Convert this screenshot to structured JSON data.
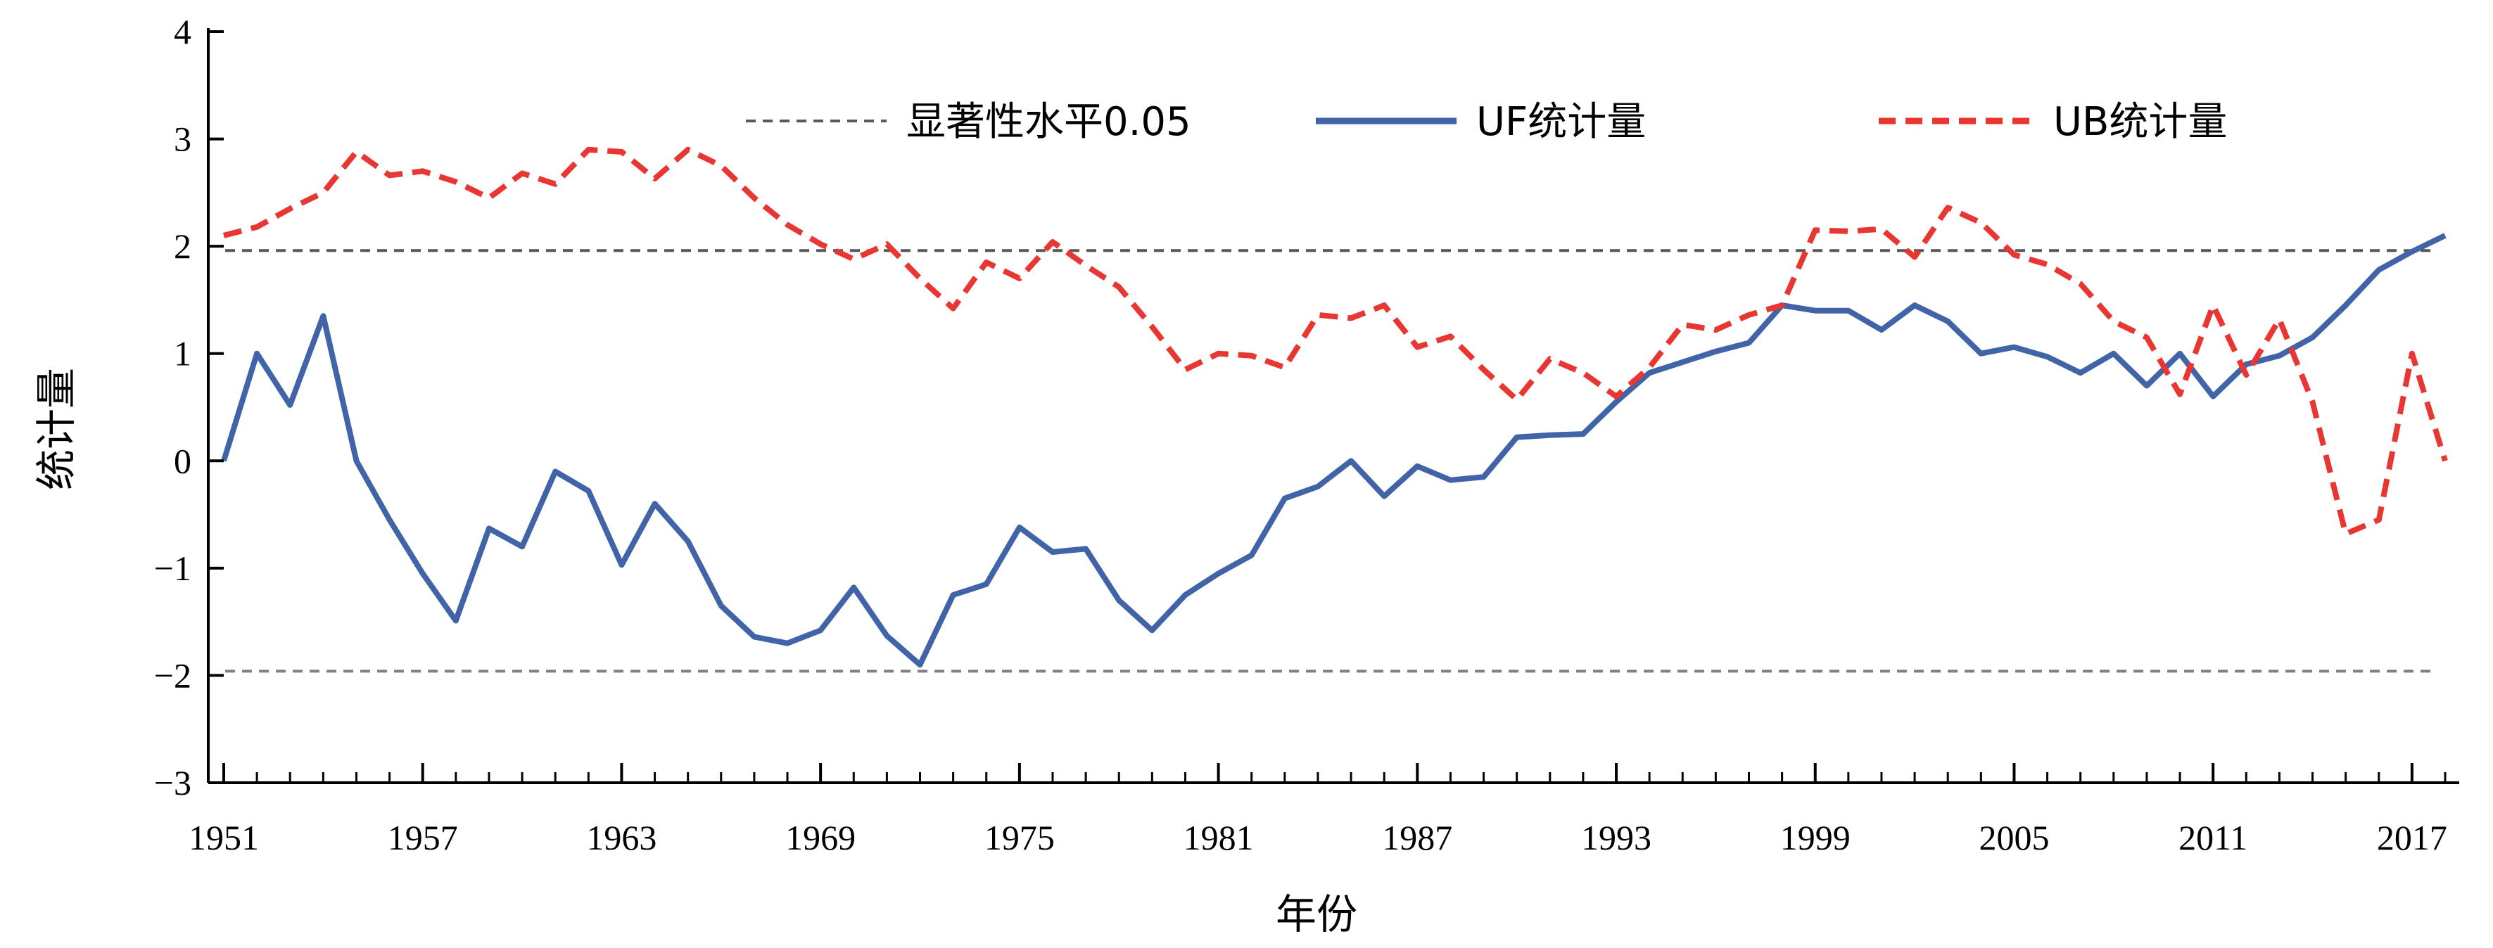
{
  "chart_data": {
    "type": "line",
    "xlabel": "年份",
    "ylabel": "统计量",
    "xlim": [
      1951,
      2018
    ],
    "ylim": [
      -3,
      4
    ],
    "x_ticks": [
      "1951",
      "1957",
      "1963",
      "1969",
      "1975",
      "1981",
      "1987",
      "1993",
      "1999",
      "2005",
      "2011",
      "2017"
    ],
    "y_ticks": [
      "−3",
      "−2",
      "−1",
      "0",
      "1",
      "2",
      "3",
      "4"
    ],
    "grid": false,
    "legend": "top-center",
    "x": [
      1951,
      1952,
      1953,
      1954,
      1955,
      1956,
      1957,
      1958,
      1959,
      1960,
      1961,
      1962,
      1963,
      1964,
      1965,
      1966,
      1967,
      1968,
      1969,
      1970,
      1971,
      1972,
      1973,
      1974,
      1975,
      1976,
      1977,
      1978,
      1979,
      1980,
      1981,
      1982,
      1983,
      1984,
      1985,
      1986,
      1987,
      1988,
      1989,
      1990,
      1991,
      1992,
      1993,
      1994,
      1995,
      1996,
      1997,
      1998,
      1999,
      2000,
      2001,
      2002,
      2003,
      2004,
      2005,
      2006,
      2007,
      2008,
      2009,
      2010,
      2011,
      2012,
      2013,
      2014,
      2015,
      2016,
      2017,
      2018
    ],
    "series": [
      {
        "name": "UF统计量",
        "color": "#4164a8",
        "style": "solid",
        "values": [
          0.0,
          1.0,
          0.52,
          1.35,
          0.0,
          -0.55,
          -1.05,
          -1.49,
          -0.63,
          -0.8,
          -0.1,
          -0.28,
          -0.97,
          -0.4,
          -0.75,
          -1.35,
          -1.64,
          -1.7,
          -1.58,
          -1.18,
          -1.63,
          -1.9,
          -1.25,
          -1.15,
          -0.62,
          -0.85,
          -0.82,
          -1.3,
          -1.58,
          -1.25,
          -1.05,
          -0.88,
          -0.35,
          -0.24,
          0.0,
          -0.33,
          -0.05,
          -0.18,
          -0.15,
          0.22,
          0.24,
          0.25,
          0.55,
          0.82,
          0.92,
          1.02,
          1.1,
          1.45,
          1.4,
          1.4,
          1.22,
          1.45,
          1.3,
          1.0,
          1.06,
          0.97,
          0.82,
          1.0,
          0.7,
          1.0,
          0.6,
          0.9,
          0.98,
          1.15,
          1.45,
          1.78,
          1.95,
          2.1
        ]
      },
      {
        "name": "UB统计量",
        "color": "#e83732",
        "style": "dashed",
        "values": [
          2.1,
          2.18,
          2.35,
          2.5,
          2.88,
          2.66,
          2.7,
          2.6,
          2.45,
          2.68,
          2.58,
          2.9,
          2.88,
          2.63,
          2.9,
          2.75,
          2.45,
          2.2,
          2.02,
          1.88,
          2.02,
          1.7,
          1.42,
          1.85,
          1.7,
          2.04,
          1.82,
          1.62,
          1.25,
          0.85,
          1.0,
          0.98,
          0.87,
          1.36,
          1.33,
          1.45,
          1.06,
          1.16,
          0.85,
          0.57,
          0.95,
          0.82,
          0.6,
          0.87,
          1.27,
          1.22,
          1.36,
          1.45,
          2.15,
          2.14,
          2.16,
          1.9,
          2.36,
          2.22,
          1.92,
          1.83,
          1.65,
          1.3,
          1.15,
          0.62,
          1.45,
          0.8,
          1.32,
          0.55,
          -0.68,
          -0.55,
          1.0,
          0.0
        ]
      }
    ],
    "reference_lines": [
      {
        "name": "显著性水平0.05",
        "value": 1.96,
        "color": "#595959",
        "style": "dashed"
      },
      {
        "value": -1.96,
        "color": "#808080",
        "style": "dashed"
      }
    ]
  }
}
